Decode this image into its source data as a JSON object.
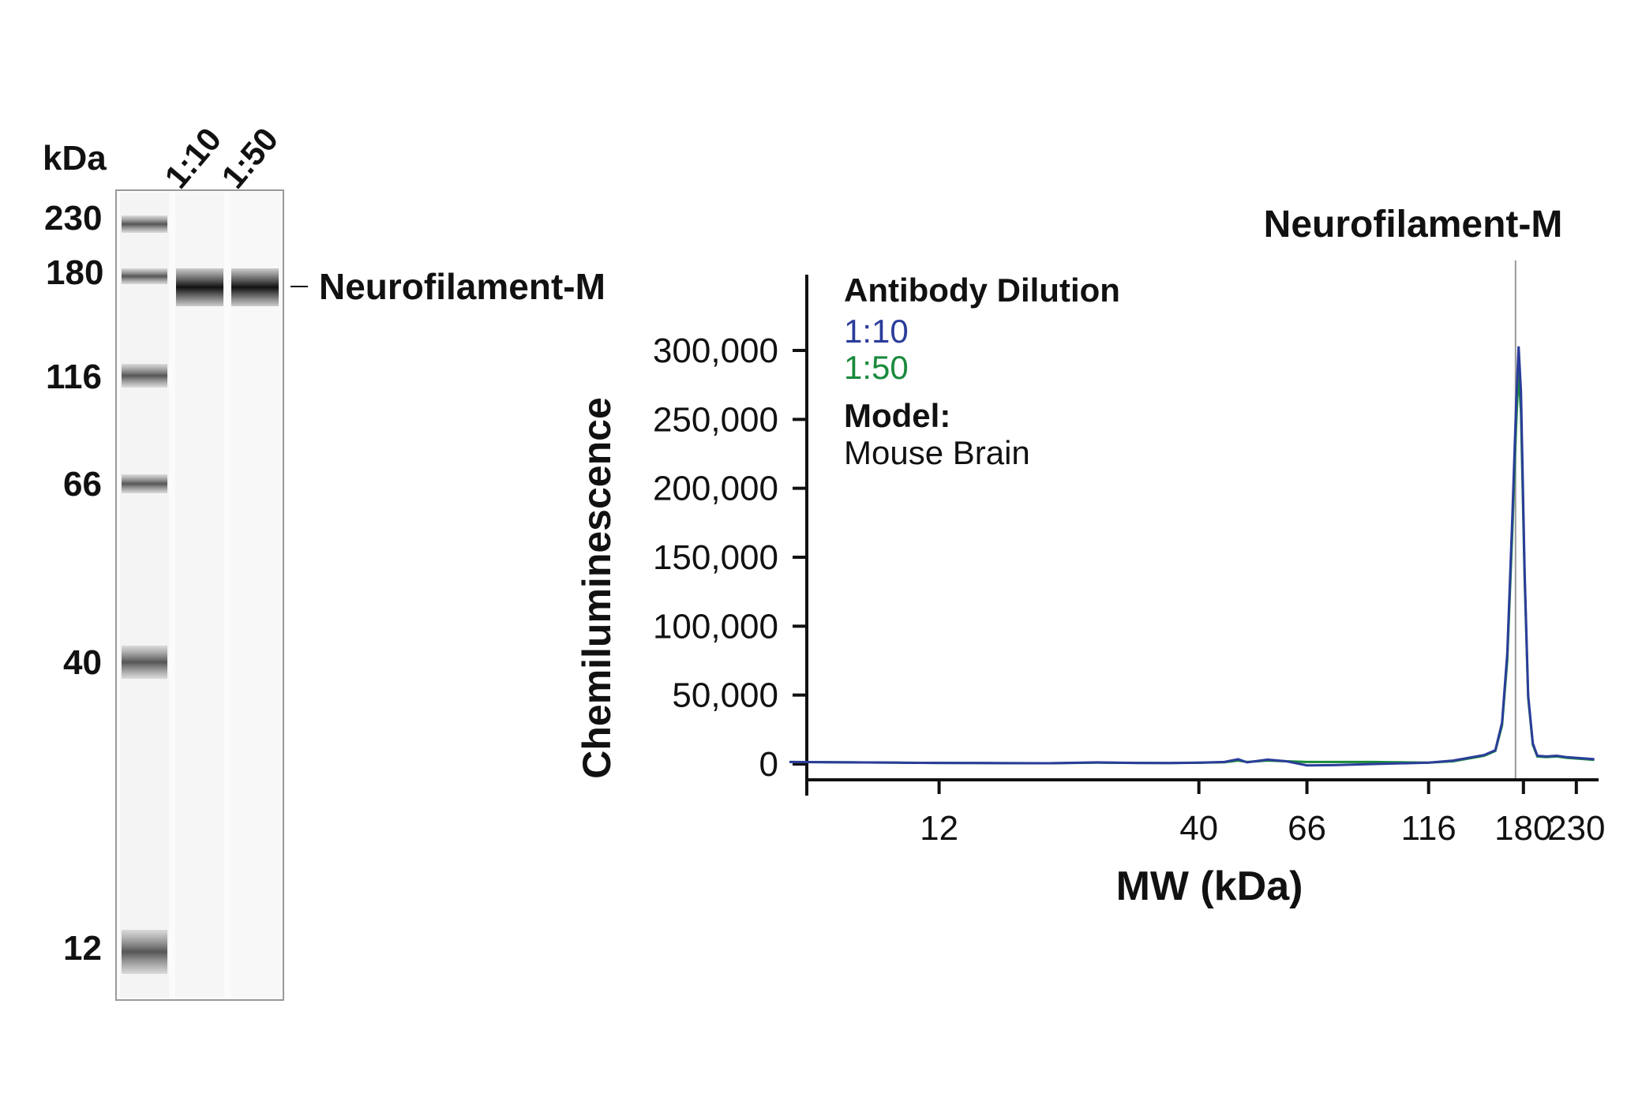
{
  "gel": {
    "unit_label": "kDa",
    "lane_labels": [
      "1:10",
      "1:50"
    ],
    "marker_labels": [
      "230",
      "180",
      "116",
      "66",
      "40",
      "12"
    ],
    "band_label": "Neurofilament-M"
  },
  "chart_data": {
    "type": "line",
    "title": "Neurofilament-M",
    "xlabel": "MW (kDa)",
    "ylabel": "Chemiluminescence",
    "x_scale": "log",
    "x_ticks": [
      12,
      40,
      66,
      116,
      180,
      230
    ],
    "x_tick_labels": [
      "12",
      "40",
      "66",
      "116",
      "180",
      "230"
    ],
    "ylim": [
      0,
      300000
    ],
    "y_ticks": [
      0,
      50000,
      100000,
      150000,
      200000,
      250000,
      300000
    ],
    "y_tick_labels": [
      "0",
      "50,000",
      "100,000",
      "150,000",
      "200,000",
      "250,000",
      "300,000"
    ],
    "marker_line_x": 180,
    "legend": {
      "heading": "Antibody Dilution",
      "model_heading": "Model:",
      "model_value": "Mouse Brain"
    },
    "series": [
      {
        "name": "1:10",
        "color": "#2b3d9a",
        "points": [
          [
            6,
            1500
          ],
          [
            8,
            1200
          ],
          [
            10,
            1000
          ],
          [
            12,
            800
          ],
          [
            15,
            700
          ],
          [
            20,
            600
          ],
          [
            25,
            1200
          ],
          [
            30,
            800
          ],
          [
            35,
            700
          ],
          [
            40,
            1000
          ],
          [
            45,
            1500
          ],
          [
            48,
            3500
          ],
          [
            50,
            1200
          ],
          [
            55,
            3200
          ],
          [
            60,
            2000
          ],
          [
            66,
            -1000
          ],
          [
            75,
            -800
          ],
          [
            90,
            0
          ],
          [
            116,
            1000
          ],
          [
            130,
            2500
          ],
          [
            150,
            6500
          ],
          [
            158,
            10000
          ],
          [
            163,
            30000
          ],
          [
            167,
            80000
          ],
          [
            171,
            180000
          ],
          [
            174,
            260000
          ],
          [
            176,
            303000
          ],
          [
            178,
            270000
          ],
          [
            181,
            140000
          ],
          [
            184,
            50000
          ],
          [
            188,
            15000
          ],
          [
            192,
            6000
          ],
          [
            200,
            5500
          ],
          [
            210,
            6000
          ],
          [
            220,
            5000
          ],
          [
            240,
            4000
          ],
          [
            250,
            3500
          ]
        ]
      },
      {
        "name": "1:50",
        "color": "#1a8a3c",
        "points": [
          [
            6,
            1500
          ],
          [
            8,
            1200
          ],
          [
            10,
            1000
          ],
          [
            12,
            800
          ],
          [
            15,
            700
          ],
          [
            20,
            600
          ],
          [
            25,
            1000
          ],
          [
            30,
            800
          ],
          [
            35,
            700
          ],
          [
            40,
            900
          ],
          [
            45,
            1300
          ],
          [
            48,
            2500
          ],
          [
            50,
            1500
          ],
          [
            55,
            2500
          ],
          [
            60,
            2000
          ],
          [
            66,
            1500
          ],
          [
            75,
            1500
          ],
          [
            90,
            1500
          ],
          [
            116,
            1000
          ],
          [
            130,
            2000
          ],
          [
            150,
            6000
          ],
          [
            158,
            9500
          ],
          [
            163,
            28000
          ],
          [
            167,
            75000
          ],
          [
            171,
            170000
          ],
          [
            174,
            245000
          ],
          [
            176,
            285000
          ],
          [
            178,
            255000
          ],
          [
            181,
            135000
          ],
          [
            184,
            48000
          ],
          [
            188,
            14000
          ],
          [
            192,
            5500
          ],
          [
            200,
            5000
          ],
          [
            210,
            5500
          ],
          [
            220,
            4500
          ],
          [
            240,
            3500
          ],
          [
            250,
            3000
          ]
        ]
      }
    ]
  }
}
